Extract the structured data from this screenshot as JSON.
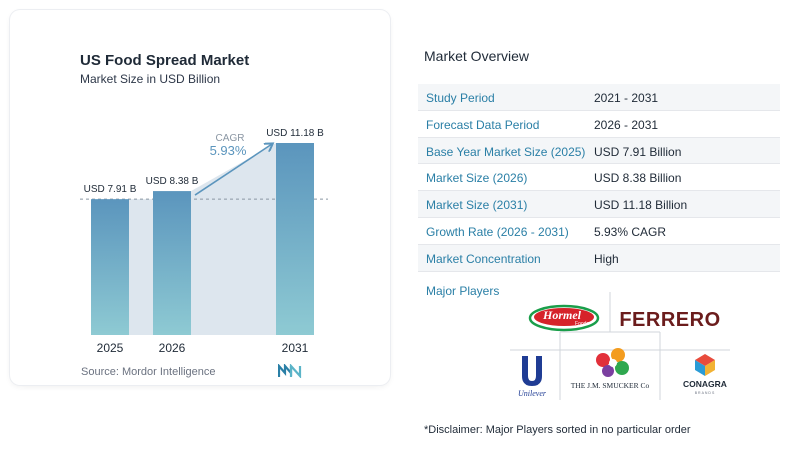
{
  "chart": {
    "title": "US Food Spread Market",
    "subtitle": "Market Size in USD Billion",
    "source": "Source:  Mordor Intelligence"
  },
  "chart_data": {
    "type": "bar",
    "title": "US Food Spread Market",
    "subtitle": "Market Size in USD Billion",
    "categories": [
      "2025",
      "2026",
      "2031"
    ],
    "values": [
      7.91,
      8.38,
      11.18
    ],
    "data_labels": [
      "USD 7.91 B",
      "USD 8.38 B",
      "USD 11.18 B"
    ],
    "ylabel": "",
    "xlabel": "",
    "ylim": [
      0,
      11.18
    ],
    "grid": false,
    "annotation": {
      "label": "CAGR",
      "value": "5.93%"
    },
    "colors": {
      "bar_top": "#5b95bd",
      "bar_bottom": "#8ecad3",
      "band": "#dde6ee",
      "arrow": "#5b95bd",
      "dashed": "#8a96a3"
    }
  },
  "overview": {
    "title": "Market Overview",
    "rows": [
      {
        "label": "Study Period",
        "value": "2021 - 2031"
      },
      {
        "label": "Forecast Data Period",
        "value": "2026 - 2031"
      },
      {
        "label": "Base Year Market Size (2025)",
        "value": "USD 7.91 Billion"
      },
      {
        "label": "Market Size (2026)",
        "value": "USD 8.38 Billion"
      },
      {
        "label": "Market Size (2031)",
        "value": "USD 11.18 Billion"
      },
      {
        "label": "Growth Rate (2026 - 2031)",
        "value": "5.93% CAGR"
      },
      {
        "label": "Market Concentration",
        "value": "High"
      }
    ],
    "major_players_label": "Major Players",
    "players": {
      "hormel": {
        "line1": "Hormel",
        "line2": "Foods"
      },
      "ferrero": "FERRERO",
      "unilever": "Unilever",
      "smucker": "THE J.M. SMUCKER Co",
      "conagra": "CONAGRA",
      "conagra_sub": "BRANDS"
    },
    "disclaimer": "*Disclaimer: Major Players sorted in no particular order"
  }
}
